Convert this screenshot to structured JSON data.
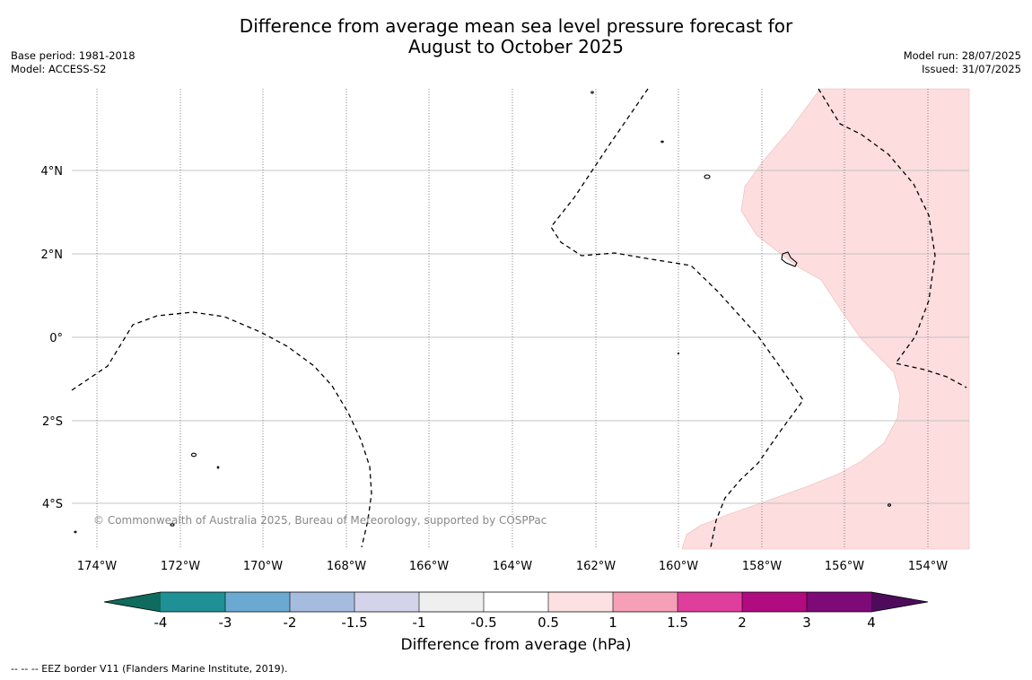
{
  "header": {
    "title_line1": "Difference from average mean sea level pressure forecast for",
    "title_line2": "August to October 2025",
    "base_period": "Base period: 1981-2018",
    "model": "Model: ACCESS-S2",
    "model_run": "Model run: 28/07/2025",
    "issued": "Issued: 31/07/2025"
  },
  "map": {
    "lat_labels": [
      "4°N",
      "2°N",
      "0°",
      "2°S",
      "4°S"
    ],
    "lon_labels": [
      "174°W",
      "172°W",
      "170°W",
      "168°W",
      "166°W",
      "164°W",
      "162°W",
      "160°W",
      "158°W",
      "156°W",
      "154°W"
    ],
    "copyright": "© Commonwealth of Australia 2025, Bureau of Meteorology, supported by COSPPac",
    "anomaly_fill_color": "#fdddde"
  },
  "colorbar": {
    "ticks": [
      "-4",
      "-3",
      "-2",
      "-1.5",
      "-1",
      "-0.5",
      "0.5",
      "1",
      "1.5",
      "2",
      "3",
      "4"
    ],
    "colors": [
      "#0e6b5d",
      "#1f9096",
      "#6aa9d1",
      "#a6bcdf",
      "#d3d3e9",
      "#efefef",
      "#ffffff",
      "#fde1e2",
      "#f6a0b8",
      "#df3f9c",
      "#b00b80",
      "#7e0a78",
      "#4e0b5c"
    ],
    "label": "Difference from average (hPa)"
  },
  "footer": {
    "legend": "--  --  -- EEZ border V11 (Flanders Marine Institute, 2019)."
  }
}
